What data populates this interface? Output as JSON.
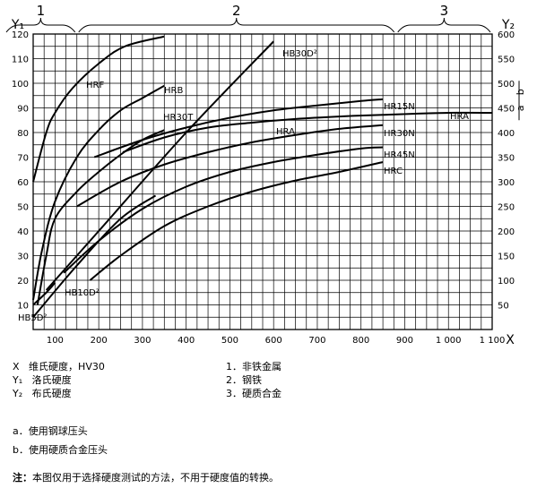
{
  "chart_data": {
    "type": "line",
    "x_axis": {
      "symbol": "X",
      "min": 50,
      "max": 1100,
      "ticks": [
        100,
        200,
        300,
        400,
        500,
        600,
        700,
        800,
        900,
        1000,
        1100
      ],
      "tick_labels": [
        "100",
        "200",
        "300",
        "400",
        "500",
        "600",
        "700",
        "800",
        "900",
        "1 000",
        "1 100"
      ]
    },
    "y1_axis": {
      "symbol": "Y₁",
      "min": 0,
      "max": 120,
      "ticks": [
        10,
        20,
        30,
        40,
        50,
        60,
        70,
        80,
        90,
        100,
        110,
        120
      ]
    },
    "y2_axis": {
      "symbol": "Y₂",
      "min": 0,
      "max": 600,
      "ticks": [
        50,
        100,
        150,
        200,
        250,
        300,
        350,
        400,
        450,
        500,
        550,
        600
      ]
    },
    "zones": [
      {
        "label": "1",
        "from": 50,
        "to": 150
      },
      {
        "label": "2",
        "from": 150,
        "to": 880
      },
      {
        "label": "3",
        "from": 880,
        "to": 1100
      }
    ],
    "side_annotation": {
      "a": "a",
      "b": "b",
      "at_y2": 465
    },
    "grid": true,
    "series": [
      {
        "name": "HRF",
        "axis": "y1",
        "points": [
          [
            50,
            60
          ],
          [
            80,
            80
          ],
          [
            100,
            88
          ],
          [
            140,
            98
          ],
          [
            200,
            108
          ],
          [
            260,
            115
          ],
          [
            350,
            119
          ]
        ]
      },
      {
        "name": "HRB",
        "axis": "y1",
        "points": [
          [
            50,
            12
          ],
          [
            70,
            32
          ],
          [
            100,
            52
          ],
          [
            150,
            70
          ],
          [
            200,
            81
          ],
          [
            250,
            89
          ],
          [
            300,
            94
          ],
          [
            350,
            99
          ]
        ]
      },
      {
        "name": "HR30T",
        "axis": "y1",
        "points": [
          [
            60,
            10
          ],
          [
            80,
            30
          ],
          [
            100,
            45
          ],
          [
            150,
            56
          ],
          [
            200,
            64
          ],
          [
            250,
            71
          ],
          [
            300,
            77
          ],
          [
            350,
            81
          ]
        ]
      },
      {
        "name": "HRA",
        "axis": "y1",
        "points": [
          [
            255,
            72
          ],
          [
            350,
            78
          ],
          [
            450,
            82
          ],
          [
            550,
            84
          ],
          [
            650,
            85.5
          ],
          [
            750,
            86.5
          ],
          [
            850,
            87.2
          ],
          [
            1000,
            88
          ],
          [
            1100,
            88
          ]
        ]
      },
      {
        "name": "HR15N",
        "axis": "y1",
        "points": [
          [
            190,
            70
          ],
          [
            300,
            77
          ],
          [
            400,
            82
          ],
          [
            500,
            86
          ],
          [
            600,
            89
          ],
          [
            700,
            91
          ],
          [
            800,
            92.8
          ],
          [
            850,
            93.5
          ]
        ]
      },
      {
        "name": "HR30N",
        "axis": "y1",
        "points": [
          [
            150,
            50
          ],
          [
            250,
            60
          ],
          [
            350,
            67
          ],
          [
            450,
            72
          ],
          [
            550,
            76
          ],
          [
            650,
            79
          ],
          [
            750,
            81.5
          ],
          [
            850,
            83
          ]
        ]
      },
      {
        "name": "HR45N",
        "axis": "y1",
        "points": [
          [
            120,
            23
          ],
          [
            200,
            36
          ],
          [
            300,
            49
          ],
          [
            400,
            58
          ],
          [
            500,
            64
          ],
          [
            600,
            68
          ],
          [
            700,
            71
          ],
          [
            800,
            73.5
          ],
          [
            850,
            74
          ]
        ]
      },
      {
        "name": "HRC",
        "axis": "y1",
        "points": [
          [
            180,
            20
          ],
          [
            250,
            30
          ],
          [
            350,
            42
          ],
          [
            450,
            50
          ],
          [
            550,
            56
          ],
          [
            650,
            60.5
          ],
          [
            750,
            64
          ],
          [
            850,
            68
          ]
        ]
      },
      {
        "name": "HB30D²",
        "axis": "y2",
        "points": [
          [
            80,
            80
          ],
          [
            200,
            200
          ],
          [
            400,
            400
          ],
          [
            600,
            585
          ]
        ]
      },
      {
        "name": "HB10D²",
        "axis": "y2",
        "points": [
          [
            50,
            25
          ],
          [
            150,
            130
          ],
          [
            250,
            225
          ],
          [
            330,
            272
          ]
        ]
      },
      {
        "name": "HB5D²",
        "axis": "y2",
        "points": [
          [
            50,
            50
          ],
          [
            80,
            75
          ],
          [
            100,
            95
          ]
        ]
      }
    ]
  },
  "legend_left": [
    {
      "sym": "X",
      "text": "维氏硬度，HV30"
    },
    {
      "sym": "Y₁",
      "text": "洛氏硬度"
    },
    {
      "sym": "Y₂",
      "text": "布氏硬度"
    }
  ],
  "legend_right": [
    "1．非铁金属",
    "2．钢铁",
    "3．硬质合金"
  ],
  "indenter_notes": [
    "a．使用钢球压头",
    "b．使用硬质合金压头"
  ],
  "footnote": {
    "label": "注：",
    "text": "本图仅用于选择硬度测试的方法，不用于硬度值的转换。"
  }
}
